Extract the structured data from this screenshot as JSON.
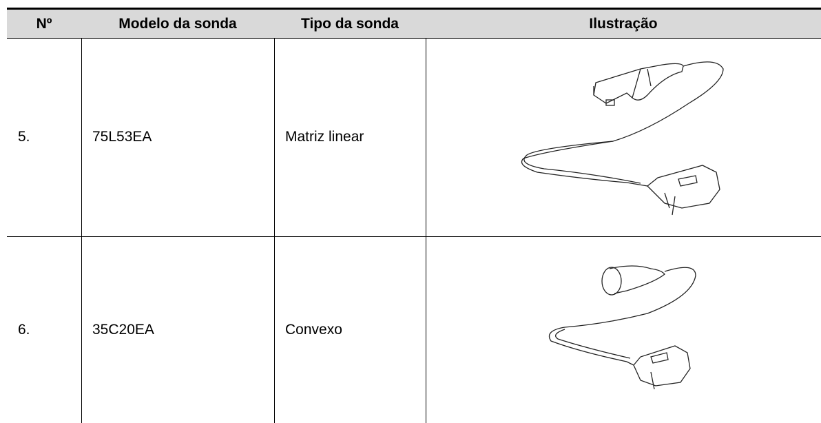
{
  "table": {
    "headers": [
      "Nº",
      "Modelo da sonda",
      "Tipo da sonda",
      "Ilustração"
    ],
    "rows": [
      [
        "5.",
        "75L53EA",
        "Matriz linear"
      ],
      [
        "6.",
        "35C20EA",
        "Convexo"
      ]
    ]
  }
}
